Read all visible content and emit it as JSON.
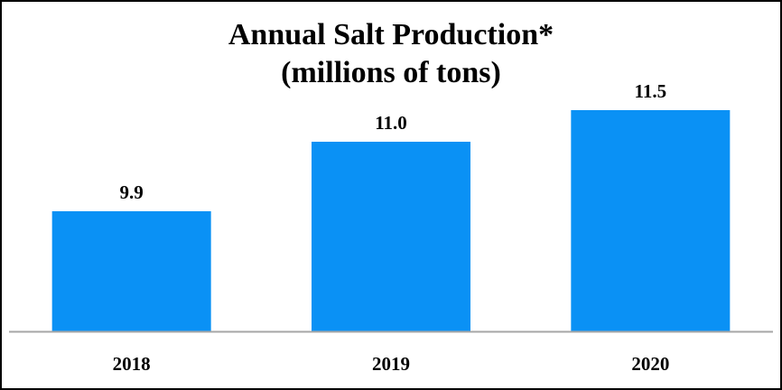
{
  "chart_data": {
    "type": "bar",
    "title": "Annual Salt Production*",
    "subtitle": "(millions of tons)",
    "categories": [
      "2018",
      "2019",
      "2020"
    ],
    "values": [
      9.9,
      11.0,
      11.5
    ],
    "data_labels": [
      "9.9",
      "11.0",
      "11.5"
    ],
    "xlabel": "",
    "ylabel": "",
    "ylim": [
      8.0,
      12.0
    ],
    "grid": false,
    "legend": "none",
    "bar_color": "#0A91F5",
    "axis_color": "#A6A6A6"
  }
}
